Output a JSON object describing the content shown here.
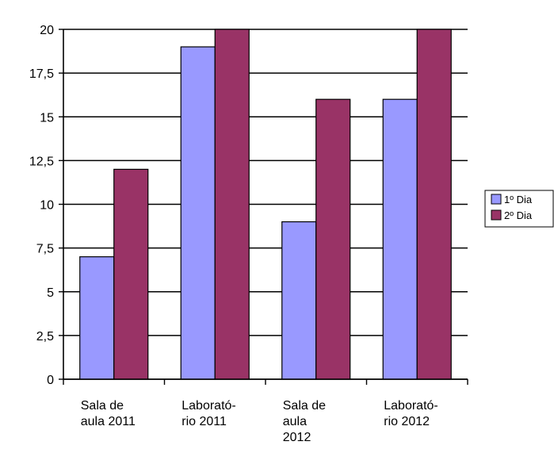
{
  "chart_data": {
    "type": "bar",
    "categories": [
      [
        "Sala de",
        "aula 2011"
      ],
      [
        "Laborató-",
        "rio 2011"
      ],
      [
        "Sala de",
        "aula",
        "2012"
      ],
      [
        "Laborató-",
        "rio 2012"
      ]
    ],
    "series": [
      {
        "name": "1º Dia",
        "values": [
          7,
          19,
          9,
          16
        ],
        "color": "#9999ff"
      },
      {
        "name": "2º Dia",
        "values": [
          12,
          20,
          16,
          20
        ],
        "color": "#993366"
      }
    ],
    "ylim": [
      0,
      20
    ],
    "yticks": [
      "0",
      "2,5",
      "5",
      "7,5",
      "10",
      "12,5",
      "15",
      "17,5",
      "20"
    ],
    "grid": true,
    "legend_position": "right"
  }
}
